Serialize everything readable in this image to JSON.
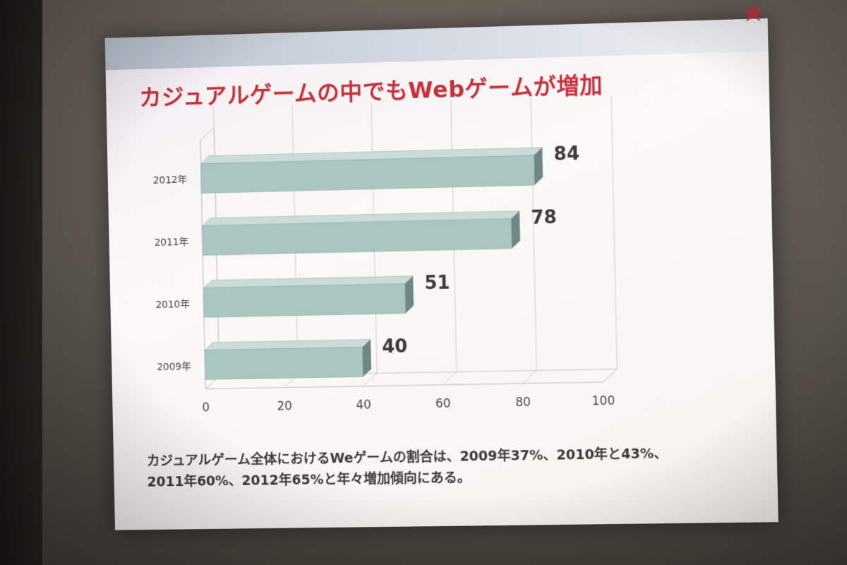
{
  "slide": {
    "title": "カジュアルゲームの中でもWebゲームが増加",
    "note_line1": "カジュアルゲーム全体におけるWeゲームの割合は、2009年37%、2010年と43%、",
    "note_line2": "2011年60%、2012年65%と年々増加傾向にある。"
  },
  "colors": {
    "title": "#c7303a",
    "bar_face": "#aac6c1",
    "bar_top": "#c9dcd8",
    "bar_end": "#6f8784"
  },
  "chart_data": {
    "type": "bar",
    "orientation": "horizontal",
    "categories": [
      "2012年",
      "2011年",
      "2010年",
      "2009年"
    ],
    "values": [
      84,
      78,
      51,
      40
    ],
    "data_labels": [
      "84",
      "78",
      "51",
      "40"
    ],
    "xlim": [
      0,
      100
    ],
    "x_ticks": [
      0,
      20,
      40,
      60,
      80,
      100
    ],
    "x_tick_labels": [
      "0",
      "20",
      "40",
      "60",
      "80",
      "100"
    ],
    "grid": true,
    "style": "3d"
  }
}
